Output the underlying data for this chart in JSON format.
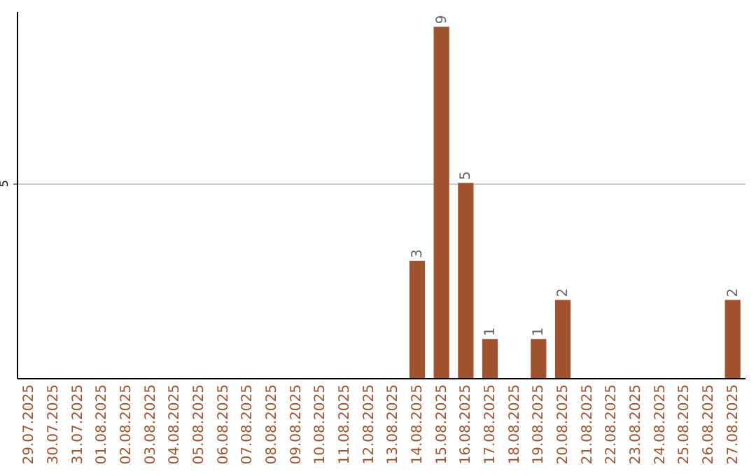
{
  "chart_data": {
    "type": "bar",
    "categories": [
      "29.07.2025",
      "30.07.2025",
      "31.07.2025",
      "01.08.2025",
      "02.08.2025",
      "03.08.2025",
      "04.08.2025",
      "05.08.2025",
      "06.08.2025",
      "07.08.2025",
      "08.08.2025",
      "09.08.2025",
      "10.08.2025",
      "11.08.2025",
      "12.08.2025",
      "13.08.2025",
      "14.08.2025",
      "15.08.2025",
      "16.08.2025",
      "17.08.2025",
      "18.08.2025",
      "19.08.2025",
      "20.08.2025",
      "21.08.2025",
      "22.08.2025",
      "23.08.2025",
      "24.08.2025",
      "25.08.2025",
      "26.08.2025",
      "27.08.2025"
    ],
    "values": [
      null,
      null,
      null,
      null,
      null,
      null,
      null,
      null,
      null,
      null,
      null,
      null,
      null,
      null,
      null,
      null,
      3,
      9,
      5,
      1,
      null,
      1,
      2,
      null,
      null,
      null,
      null,
      null,
      null,
      2
    ],
    "data_labels": true,
    "color": "#a0522d",
    "ylim": [
      0,
      9.4
    ],
    "yticks": [
      5
    ],
    "grid": "y"
  }
}
